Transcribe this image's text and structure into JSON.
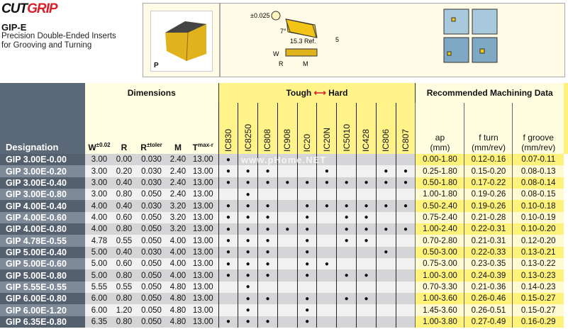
{
  "header": {
    "logo_a": "CUT",
    "logo_b": "GRIP",
    "title": "GIP-E",
    "subtitle_1": "Precision Double-Ended Inserts",
    "subtitle_2": "for Grooving and Turning",
    "photo_label": "P"
  },
  "drawing": {
    "tolerance": "±0.025",
    "angle": "7°",
    "length": "15.3 Ref.",
    "thickness": "5",
    "w": "W",
    "r": "R",
    "m": "M"
  },
  "table": {
    "designation_header": "Designation",
    "dimensions_header": "Dimensions",
    "dim_cols": [
      "W",
      "R",
      "R",
      "M",
      "T"
    ],
    "dim_sups": [
      "±0.02",
      "",
      "±toler",
      "",
      "max-r"
    ],
    "grades_header_tough": "Tough",
    "grades_header_hard": "Hard",
    "grades": [
      "IC830",
      "IC8250",
      "IC808",
      "IC908",
      "IC20",
      "IC20N",
      "IC5010",
      "IC428",
      "IC806",
      "IC807"
    ],
    "machining_header": "Recommended  Machining Data",
    "md_cols": [
      [
        "ap",
        "(mm)"
      ],
      [
        "f turn",
        "(mm/rev)"
      ],
      [
        "f groove",
        "(mm/rev)"
      ]
    ],
    "rows": [
      {
        "d": "GIP 3.00E-0.00",
        "dims": [
          "3.00",
          "0.00",
          "0.030",
          "2.40",
          "13.00"
        ],
        "g": "1000000000",
        "md": [
          "0.00-1.80",
          "0.12-0.16",
          "0.07-0.11"
        ]
      },
      {
        "d": "GIP 3.00E-0.20",
        "dims": [
          "3.00",
          "0.20",
          "0.030",
          "2.40",
          "13.00"
        ],
        "g": "1110010011",
        "md": [
          "0.25-1.80",
          "0.15-0.20",
          "0.08-0.13"
        ]
      },
      {
        "d": "GIP 3.00E-0.40",
        "dims": [
          "3.00",
          "0.40",
          "0.030",
          "2.40",
          "13.00"
        ],
        "g": "1111111111",
        "md": [
          "0.50-1.80",
          "0.17-0.22",
          "0.08-0.14"
        ]
      },
      {
        "d": "GIP 3.00E-0.80",
        "dims": [
          "3.00",
          "0.80",
          "0.050",
          "2.40",
          "13.00"
        ],
        "g": "0100000000",
        "md": [
          "1.00-1.80",
          "0.19-0.26",
          "0.08-0.15"
        ]
      },
      {
        "d": "GIP 4.00E-0.40",
        "dims": [
          "4.00",
          "0.40",
          "0.030",
          "3.20",
          "13.00"
        ],
        "g": "1110111111",
        "md": [
          "0.50-2.40",
          "0.19-0.26",
          "0.10-0.18"
        ]
      },
      {
        "d": "GIP 4.00E-0.60",
        "dims": [
          "4.00",
          "0.60",
          "0.050",
          "3.20",
          "13.00"
        ],
        "g": "1110101100",
        "md": [
          "0.75-2.40",
          "0.21-0.28",
          "0.10-0.19"
        ]
      },
      {
        "d": "GIP 4.00E-0.80",
        "dims": [
          "4.00",
          "0.80",
          "0.050",
          "3.20",
          "13.00"
        ],
        "g": "1111101111",
        "md": [
          "1.00-2.40",
          "0.22-0.31",
          "0.10-0.20"
        ]
      },
      {
        "d": "GIP 4.78E-0.55",
        "dims": [
          "4.78",
          "0.55",
          "0.050",
          "4.00",
          "13.00"
        ],
        "g": "1110101100",
        "md": [
          "0.70-2.80",
          "0.21-0.31",
          "0.12-0.20"
        ]
      },
      {
        "d": "GIP 5.00E-0.40",
        "dims": [
          "5.00",
          "0.40",
          "0.030",
          "4.00",
          "13.00"
        ],
        "g": "1110100010",
        "md": [
          "0.50-3.00",
          "0.22-0.33",
          "0.13-0.21"
        ]
      },
      {
        "d": "GIP 5.00E-0.60",
        "dims": [
          "5.00",
          "0.60",
          "0.050",
          "4.00",
          "13.00"
        ],
        "g": "1110110000",
        "md": [
          "0.75-3.00",
          "0.23-0.35",
          "0.13-0.22"
        ]
      },
      {
        "d": "GIP 5.00E-0.80",
        "dims": [
          "5.00",
          "0.80",
          "0.050",
          "4.00",
          "13.00"
        ],
        "g": "1110101100",
        "md": [
          "1.00-3.00",
          "0.24-0.39",
          "0.13-0.23"
        ]
      },
      {
        "d": "GIP 5.55E-0.55",
        "dims": [
          "5.55",
          "0.55",
          "0.050",
          "4.80",
          "13.00"
        ],
        "g": "0100000000",
        "md": [
          "0.70-3.30",
          "0.21-0.36",
          "0.14-0.23"
        ]
      },
      {
        "d": "GIP 6.00E-0.80",
        "dims": [
          "6.00",
          "0.80",
          "0.050",
          "4.80",
          "13.00"
        ],
        "g": "0110101100",
        "md": [
          "1.00-3.60",
          "0.26-0.46",
          "0.15-0.27"
        ]
      },
      {
        "d": "GIP 6.00E-1.20",
        "dims": [
          "6.00",
          "1.20",
          "0.050",
          "4.80",
          "13.00"
        ],
        "g": "0100100000",
        "md": [
          "1.45-3.60",
          "0.26-0.51",
          "0.15-0.27"
        ]
      },
      {
        "d": "GIP 6.35E-0.80",
        "dims": [
          "6.35",
          "0.80",
          "0.050",
          "4.80",
          "13.00"
        ],
        "g": "1110100000",
        "md": [
          "1.00-3.80",
          "0.27-0.49",
          "0.16-0.29"
        ]
      }
    ]
  },
  "watermark": "www.pHome.NET",
  "colors": {
    "brand_red": "#d8202a",
    "designation_bg": "#55606e",
    "grade_yellow": "#fff38a"
  }
}
